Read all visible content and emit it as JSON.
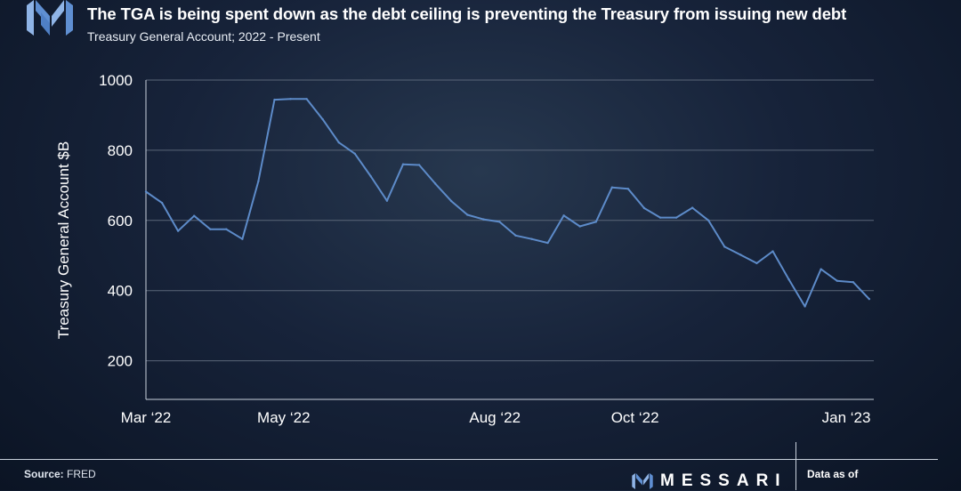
{
  "header": {
    "title": "The TGA is being spent down as the debt ceiling is preventing the Treasury from issuing new debt",
    "subtitle": "Treasury General Account; 2022 - Present"
  },
  "footer": {
    "source_label": "Source:",
    "source_value": "FRED",
    "brand": "MESSARI",
    "data_as_of": "Data as of"
  },
  "colors": {
    "line": "#5d8bc9",
    "grid": "#5a6678",
    "axis": "#c9d1dc",
    "logo_light": "#8fb4e6",
    "logo_dark": "#4f7fc4"
  },
  "icons": {
    "logo": "messari-logo-icon",
    "brand_mark": "messari-mark-icon"
  },
  "chart_data": {
    "type": "line",
    "title": "The TGA is being spent down as the debt ceiling is preventing the Treasury from issuing new debt",
    "subtitle": "Treasury General Account; 2022 - Present",
    "ylabel": "Treasury General Account $B",
    "xlabel": "",
    "ylim": [
      90,
      1000
    ],
    "yticks": [
      200,
      400,
      600,
      800,
      1000
    ],
    "xticks": [
      {
        "label": "Mar ‘22",
        "date": "2022-03-02"
      },
      {
        "label": "May ‘22",
        "date": "2022-05-01"
      },
      {
        "label": "Aug ‘22",
        "date": "2022-08-01"
      },
      {
        "label": "Oct ‘22",
        "date": "2022-10-01"
      },
      {
        "label": "Jan ‘23",
        "date": "2023-01-01"
      }
    ],
    "xlim": [
      "2022-03-02",
      "2023-01-13"
    ],
    "grid": true,
    "legend": "none",
    "series": [
      {
        "x": [
          "2022-03-02",
          "2022-03-09",
          "2022-03-16",
          "2022-03-23",
          "2022-03-30",
          "2022-04-06",
          "2022-04-13",
          "2022-04-20",
          "2022-04-27",
          "2022-05-04",
          "2022-05-11",
          "2022-05-18",
          "2022-05-25",
          "2022-06-01",
          "2022-06-08",
          "2022-06-15",
          "2022-06-22",
          "2022-06-29",
          "2022-07-06",
          "2022-07-13",
          "2022-07-20",
          "2022-07-27",
          "2022-08-03",
          "2022-08-10",
          "2022-08-17",
          "2022-08-24",
          "2022-08-31",
          "2022-09-07",
          "2022-09-14",
          "2022-09-21",
          "2022-09-28",
          "2022-10-05",
          "2022-10-12",
          "2022-10-19",
          "2022-10-26",
          "2022-11-02",
          "2022-11-09",
          "2022-11-16",
          "2022-11-23",
          "2022-11-30",
          "2022-12-07",
          "2022-12-14",
          "2022-12-21",
          "2022-12-28",
          "2023-01-04",
          "2023-01-11"
        ],
        "values": [
          682,
          650,
          570,
          613,
          575,
          575,
          547,
          712,
          944,
          946,
          946,
          888,
          822,
          790,
          725,
          656,
          760,
          758,
          705,
          655,
          616,
          603,
          596,
          557,
          547,
          536,
          614,
          583,
          596,
          694,
          690,
          635,
          608,
          608,
          636,
          600,
          525,
          502,
          478,
          512,
          432,
          355,
          461,
          428,
          424,
          376
        ]
      }
    ]
  }
}
